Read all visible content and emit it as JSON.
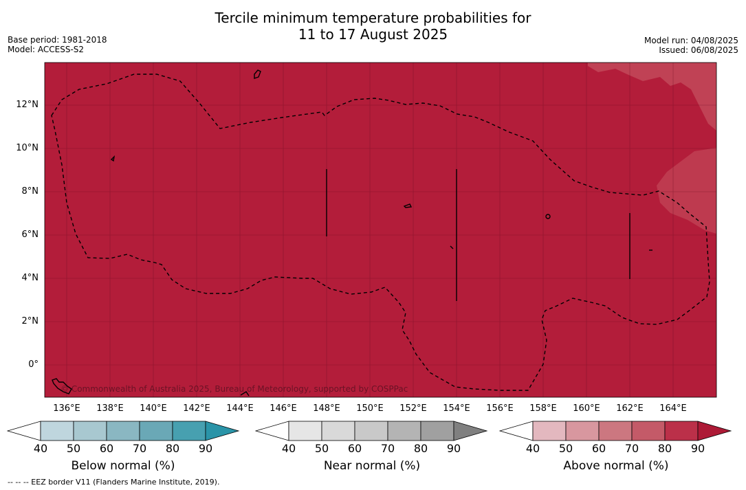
{
  "title_line1": "Tercile minimum temperature probabilities for",
  "title_line2": "11 to 17 August 2025",
  "base_period": "Base period: 1981-2018",
  "model": "Model: ACCESS-S2",
  "model_run": "Model run: 04/08/2025",
  "issued": "Issued: 06/08/2025",
  "credit": "© Commonwealth of Australia 2025, Bureau of Meteorology, supported by COSPPac",
  "footnote": "--  --  -- EEZ border V11 (Flanders Marine Institute, 2019).",
  "colors": {
    "above_90": "#b31d3a",
    "above_80": "#c04255",
    "below": [
      "#bfd6de",
      "#a8c8d0",
      "#8ab7c2",
      "#6aa8b6",
      "#47a0b0",
      "#2a94a8"
    ],
    "near": [
      "#e6e6e6",
      "#d9d9d9",
      "#c9c9c9",
      "#b4b4b4",
      "#a0a0a0",
      "#808080"
    ],
    "above": [
      "#e3b8bf",
      "#d8979f",
      "#cc7780",
      "#c45a68",
      "#bb3049",
      "#ad1a36"
    ]
  },
  "lat_ticks": [
    "12°N",
    "10°N",
    "8°N",
    "6°N",
    "4°N",
    "2°N",
    "0°"
  ],
  "lon_ticks": [
    "136°E",
    "138°E",
    "140°E",
    "142°E",
    "144°E",
    "146°E",
    "148°E",
    "150°E",
    "152°E",
    "154°E",
    "156°E",
    "158°E",
    "160°E",
    "162°E",
    "164°E"
  ],
  "legends": [
    {
      "label": "Below normal (%)",
      "ticks": [
        "40",
        "50",
        "60",
        "70",
        "80",
        "90"
      ]
    },
    {
      "label": "Near normal (%)",
      "ticks": [
        "40",
        "50",
        "60",
        "70",
        "80",
        "90"
      ]
    },
    {
      "label": "Above normal (%)",
      "ticks": [
        "40",
        "50",
        "60",
        "70",
        "80",
        "90"
      ]
    }
  ]
}
